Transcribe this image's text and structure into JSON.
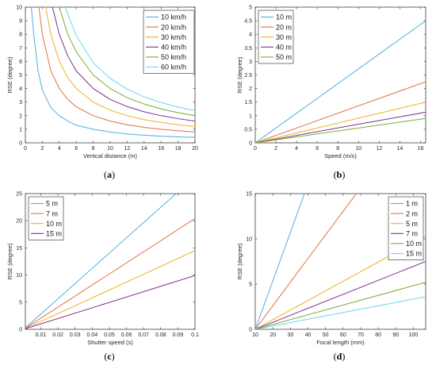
{
  "chart_data": [
    {
      "type": "line",
      "caption": "(a)",
      "xlabel": "Vertical distance (m)",
      "ylabel": "RSE (degree)",
      "xlim": [
        0,
        20
      ],
      "ylim": [
        0,
        10
      ],
      "xticks": [
        0,
        2,
        4,
        6,
        8,
        10,
        12,
        14,
        16,
        18,
        20
      ],
      "yticks": [
        0,
        1,
        2,
        3,
        4,
        5,
        6,
        7,
        8,
        9,
        10
      ],
      "legend_position": "top-right",
      "grid": false,
      "series": [
        {
          "name": "10 km/h",
          "color": "#4DAFE4",
          "points": [
            [
              0.7,
              10
            ],
            [
              1,
              7.9
            ],
            [
              1.5,
              5.3
            ],
            [
              2,
              3.9
            ],
            [
              3,
              2.6
            ],
            [
              4,
              2.0
            ],
            [
              5,
              1.6
            ],
            [
              6,
              1.3
            ],
            [
              8,
              1.0
            ],
            [
              10,
              0.8
            ],
            [
              12,
              0.65
            ],
            [
              14,
              0.56
            ],
            [
              16,
              0.49
            ],
            [
              18,
              0.44
            ],
            [
              20,
              0.4
            ]
          ]
        },
        {
          "name": "20 km/h",
          "color": "#E07040",
          "points": [
            [
              1.6,
              10
            ],
            [
              2,
              8.0
            ],
            [
              3,
              5.3
            ],
            [
              4,
              4.0
            ],
            [
              5,
              3.2
            ],
            [
              6,
              2.65
            ],
            [
              8,
              2.0
            ],
            [
              10,
              1.6
            ],
            [
              12,
              1.33
            ],
            [
              14,
              1.14
            ],
            [
              16,
              1.0
            ],
            [
              18,
              0.89
            ],
            [
              20,
              0.8
            ]
          ]
        },
        {
          "name": "30 km/h",
          "color": "#EDB120",
          "points": [
            [
              2.4,
              10
            ],
            [
              3,
              8.0
            ],
            [
              4,
              6.0
            ],
            [
              5,
              4.8
            ],
            [
              6,
              4.0
            ],
            [
              8,
              3.0
            ],
            [
              10,
              2.4
            ],
            [
              12,
              2.0
            ],
            [
              14,
              1.71
            ],
            [
              16,
              1.5
            ],
            [
              18,
              1.33
            ],
            [
              20,
              1.2
            ]
          ]
        },
        {
          "name": "40 km/h",
          "color": "#7E2F8E",
          "points": [
            [
              3.2,
              10
            ],
            [
              4,
              8.0
            ],
            [
              5,
              6.4
            ],
            [
              6,
              5.3
            ],
            [
              8,
              4.0
            ],
            [
              10,
              3.2
            ],
            [
              12,
              2.67
            ],
            [
              14,
              2.29
            ],
            [
              16,
              2.0
            ],
            [
              18,
              1.78
            ],
            [
              20,
              1.6
            ]
          ]
        },
        {
          "name": "50 km/h",
          "color": "#77AC30",
          "points": [
            [
              4,
              10
            ],
            [
              5,
              8.0
            ],
            [
              6,
              6.7
            ],
            [
              8,
              5.0
            ],
            [
              10,
              4.0
            ],
            [
              12,
              3.33
            ],
            [
              14,
              2.86
            ],
            [
              16,
              2.5
            ],
            [
              18,
              2.22
            ],
            [
              20,
              2.0
            ]
          ]
        },
        {
          "name": "60 km/h",
          "color": "#6FD3EE",
          "points": [
            [
              4.7,
              10
            ],
            [
              5,
              9.5
            ],
            [
              6,
              7.9
            ],
            [
              8,
              5.9
            ],
            [
              10,
              4.75
            ],
            [
              12,
              3.96
            ],
            [
              14,
              3.39
            ],
            [
              16,
              2.97
            ],
            [
              18,
              2.64
            ],
            [
              20,
              2.37
            ]
          ]
        }
      ]
    },
    {
      "type": "line",
      "caption": "(b)",
      "xlabel": "Speed (m/s)",
      "ylabel": "RSE (degree)",
      "xlim": [
        0,
        16.5
      ],
      "ylim": [
        0,
        5
      ],
      "xticks": [
        0,
        2,
        4,
        6,
        8,
        10,
        12,
        14,
        16
      ],
      "yticks": [
        0,
        0.5,
        1,
        1.5,
        2,
        2.5,
        3,
        3.5,
        4,
        4.5,
        5
      ],
      "legend_position": "top-left",
      "grid": false,
      "series": [
        {
          "name": "10 m",
          "color": "#4DAFE4",
          "points": [
            [
              0,
              0
            ],
            [
              16.5,
              4.5
            ]
          ]
        },
        {
          "name": "20 m",
          "color": "#E07040",
          "points": [
            [
              0,
              0
            ],
            [
              16.5,
              2.25
            ]
          ]
        },
        {
          "name": "30 m",
          "color": "#EDB120",
          "points": [
            [
              0,
              0
            ],
            [
              16.5,
              1.5
            ]
          ]
        },
        {
          "name": "40 m",
          "color": "#7E2F8E",
          "points": [
            [
              0,
              0
            ],
            [
              16.5,
              1.13
            ]
          ]
        },
        {
          "name": "50 m",
          "color": "#77AC30",
          "points": [
            [
              0,
              0
            ],
            [
              16.5,
              0.9
            ]
          ]
        }
      ]
    },
    {
      "type": "line",
      "caption": "(c)",
      "xlabel": "Shutter speed (s)",
      "ylabel": "RSE (degree)",
      "xlim": [
        0.001,
        0.1
      ],
      "ylim": [
        0,
        25
      ],
      "xticks": [
        0.01,
        0.02,
        0.03,
        0.04,
        0.05,
        0.06,
        0.07,
        0.08,
        0.09,
        0.1
      ],
      "yticks": [
        0,
        5,
        10,
        15,
        20,
        25
      ],
      "legend_position": "top-left",
      "grid": false,
      "series": [
        {
          "name": "5 m",
          "color": "#4DAFE4",
          "points": [
            [
              0.001,
              0.28
            ],
            [
              0.089,
              25
            ]
          ]
        },
        {
          "name": "7 m",
          "color": "#E07040",
          "points": [
            [
              0.001,
              0.2
            ],
            [
              0.1,
              20.4
            ]
          ]
        },
        {
          "name": "10 m",
          "color": "#EDB120",
          "points": [
            [
              0.001,
              0.14
            ],
            [
              0.1,
              14.5
            ]
          ]
        },
        {
          "name": "15 m",
          "color": "#7E2F8E",
          "points": [
            [
              0.001,
              0.1
            ],
            [
              0.1,
              9.9
            ]
          ]
        }
      ]
    },
    {
      "type": "line",
      "caption": "(d)",
      "xlabel": "Focal length (mm)",
      "ylabel": "RSE (degree)",
      "xlim": [
        10,
        107
      ],
      "ylim": [
        0,
        15
      ],
      "xticks": [
        10,
        20,
        30,
        40,
        50,
        60,
        70,
        80,
        90,
        100
      ],
      "yticks": [
        0,
        5,
        10,
        15
      ],
      "legend_position": "top-right",
      "grid": false,
      "series": [
        {
          "name": "1 m",
          "color": "#4DAFE4",
          "points": [
            [
              10,
              0
            ],
            [
              38,
              15
            ]
          ]
        },
        {
          "name": "2 m",
          "color": "#E07040",
          "points": [
            [
              10,
              0
            ],
            [
              67.5,
              15
            ]
          ]
        },
        {
          "name": "5 m",
          "color": "#EDB120",
          "points": [
            [
              10,
              0
            ],
            [
              107,
              10.3
            ]
          ]
        },
        {
          "name": "7 m",
          "color": "#7E2F8E",
          "points": [
            [
              10,
              0
            ],
            [
              107,
              7.5
            ]
          ]
        },
        {
          "name": "10 m",
          "color": "#77AC30",
          "points": [
            [
              10,
              0
            ],
            [
              107,
              5.2
            ]
          ]
        },
        {
          "name": "15 m",
          "color": "#6FD3EE",
          "points": [
            [
              10,
              0
            ],
            [
              107,
              3.6
            ]
          ]
        }
      ]
    }
  ]
}
